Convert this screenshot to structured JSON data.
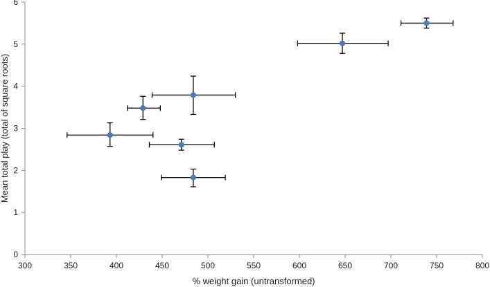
{
  "chart_data": {
    "type": "scatter",
    "title": "",
    "xlabel": "% weight gain (untransformed)",
    "ylabel": "Mean total play (total of square roots)",
    "xlim": [
      300,
      800
    ],
    "ylim": [
      0,
      6
    ],
    "xticks": [
      300,
      350,
      400,
      450,
      500,
      550,
      600,
      650,
      700,
      750,
      800
    ],
    "yticks": [
      0,
      1,
      2,
      3,
      4,
      5,
      6
    ],
    "xtick_labels": [
      "300",
      "350",
      "400",
      "450",
      "500",
      "550",
      "600",
      "650",
      "700",
      "750",
      "800"
    ],
    "ytick_labels": [
      "0",
      "1",
      "2",
      "3",
      "4",
      "5",
      "6"
    ],
    "grid": false,
    "legend": "none",
    "colors": {
      "marker": "#4a7ebb",
      "error_bar": "#000000",
      "axis": "#8c8c8c"
    },
    "points": [
      {
        "x": 739,
        "y": 5.5,
        "x_err": [
          711,
          768
        ],
        "y_err": [
          5.38,
          5.62
        ]
      },
      {
        "x": 647,
        "y": 5.02,
        "x_err": [
          598,
          697
        ],
        "y_err": [
          4.78,
          5.26
        ]
      },
      {
        "x": 484,
        "y": 3.79,
        "x_err": [
          439,
          530
        ],
        "y_err": [
          3.33,
          4.24
        ]
      },
      {
        "x": 429,
        "y": 3.48,
        "x_err": [
          412,
          448
        ],
        "y_err": [
          3.21,
          3.76
        ]
      },
      {
        "x": 393,
        "y": 2.84,
        "x_err": [
          346,
          440
        ],
        "y_err": [
          2.57,
          3.13
        ]
      },
      {
        "x": 471,
        "y": 2.61,
        "x_err": [
          436,
          507
        ],
        "y_err": [
          2.48,
          2.74
        ]
      },
      {
        "x": 484,
        "y": 1.83,
        "x_err": [
          449,
          519
        ],
        "y_err": [
          1.61,
          2.03
        ]
      }
    ]
  }
}
